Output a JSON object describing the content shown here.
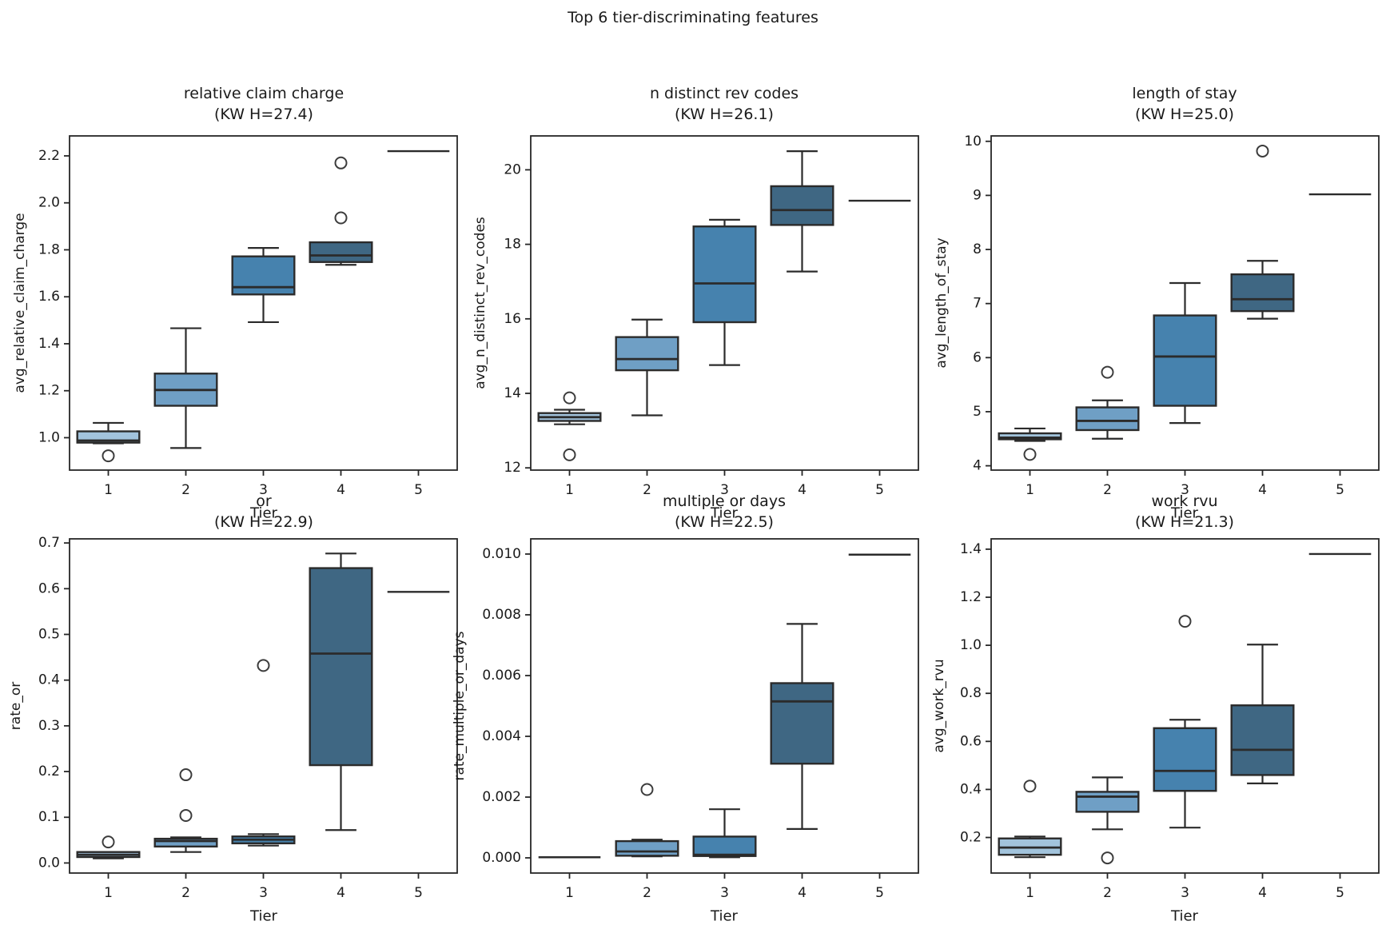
{
  "figure": {
    "suptitle": "Top 6 tier-discriminating features"
  },
  "palette": {
    "box_colors": [
      "#a2c3dc",
      "#6f9fc5",
      "#4682ae",
      "#3f6783",
      "#2e4f68"
    ],
    "line": "#2b2b2b",
    "spine": "#262626",
    "text": "#1a1a1a",
    "flier_edge": "#3c3c3c",
    "background": "#ffffff"
  },
  "chart_data": [
    {
      "type": "boxplot",
      "title": "relative claim charge",
      "subtitle": "(KW H=27.4)",
      "kw_h": 27.4,
      "xlabel": "Tier",
      "ylabel": "avg_relative_claim_charge",
      "categories": [
        "1",
        "2",
        "3",
        "4",
        "5"
      ],
      "ylim": [
        0.862,
        2.285
      ],
      "yticks": [
        1.0,
        1.2,
        1.4,
        1.6,
        1.8,
        2.0,
        2.2
      ],
      "ytick_labels": [
        "1.0",
        "1.2",
        "1.4",
        "1.6",
        "1.8",
        "2.0",
        "2.2"
      ],
      "boxes": [
        {
          "tier": "1",
          "whislo": 0.976,
          "q1": 0.979,
          "med": 0.988,
          "q3": 1.027,
          "whishi": 1.063,
          "fliers": [
            0.923
          ]
        },
        {
          "tier": "2",
          "whislo": 0.956,
          "q1": 1.136,
          "med": 1.203,
          "q3": 1.273,
          "whishi": 1.466,
          "fliers": []
        },
        {
          "tier": "3",
          "whislo": 1.492,
          "q1": 1.61,
          "med": 1.641,
          "q3": 1.772,
          "whishi": 1.808,
          "fliers": []
        },
        {
          "tier": "4",
          "whislo": 1.736,
          "q1": 1.748,
          "med": 1.776,
          "q3": 1.832,
          "whishi": 1.832,
          "fliers": [
            1.936,
            2.17
          ]
        },
        {
          "tier": "5",
          "whislo": 2.22,
          "q1": 2.22,
          "med": 2.22,
          "q3": 2.22,
          "whishi": 2.22,
          "fliers": []
        }
      ]
    },
    {
      "type": "boxplot",
      "title": "n distinct rev codes",
      "subtitle": "(KW H=26.1)",
      "kw_h": 26.1,
      "xlabel": "Tier",
      "ylabel": "avg_n_distinct_rev_codes",
      "categories": [
        "1",
        "2",
        "3",
        "4",
        "5"
      ],
      "ylim": [
        11.94,
        20.91
      ],
      "yticks": [
        12,
        14,
        16,
        18,
        20
      ],
      "ytick_labels": [
        "12",
        "14",
        "16",
        "18",
        "20"
      ],
      "boxes": [
        {
          "tier": "1",
          "whislo": 13.17,
          "q1": 13.26,
          "med": 13.36,
          "q3": 13.47,
          "whishi": 13.56,
          "fliers": [
            13.88,
            12.35
          ]
        },
        {
          "tier": "2",
          "whislo": 13.41,
          "q1": 14.62,
          "med": 14.92,
          "q3": 15.51,
          "whishi": 15.98,
          "fliers": []
        },
        {
          "tier": "3",
          "whislo": 14.76,
          "q1": 15.91,
          "med": 16.95,
          "q3": 18.48,
          "whishi": 18.66,
          "fliers": []
        },
        {
          "tier": "4",
          "whislo": 17.27,
          "q1": 18.52,
          "med": 18.92,
          "q3": 19.56,
          "whishi": 20.5,
          "fliers": []
        },
        {
          "tier": "5",
          "whislo": 19.17,
          "q1": 19.17,
          "med": 19.17,
          "q3": 19.17,
          "whishi": 19.17,
          "fliers": []
        }
      ]
    },
    {
      "type": "boxplot",
      "title": "length of stay",
      "subtitle": "(KW H=25.0)",
      "kw_h": 25.0,
      "xlabel": "Tier",
      "ylabel": "avg_length_of_stay",
      "categories": [
        "1",
        "2",
        "3",
        "4",
        "5"
      ],
      "ylim": [
        3.92,
        10.1
      ],
      "yticks": [
        4,
        5,
        6,
        7,
        8,
        9,
        10
      ],
      "ytick_labels": [
        "4",
        "5",
        "6",
        "7",
        "8",
        "9",
        "10"
      ],
      "boxes": [
        {
          "tier": "1",
          "whislo": 4.46,
          "q1": 4.49,
          "med": 4.52,
          "q3": 4.6,
          "whishi": 4.69,
          "fliers": [
            4.21
          ]
        },
        {
          "tier": "2",
          "whislo": 4.5,
          "q1": 4.66,
          "med": 4.83,
          "q3": 5.08,
          "whishi": 5.21,
          "fliers": [
            5.73
          ]
        },
        {
          "tier": "3",
          "whislo": 4.79,
          "q1": 5.11,
          "med": 6.02,
          "q3": 6.78,
          "whishi": 7.38,
          "fliers": []
        },
        {
          "tier": "4",
          "whislo": 6.72,
          "q1": 6.86,
          "med": 7.08,
          "q3": 7.54,
          "whishi": 7.79,
          "fliers": [
            9.82
          ]
        },
        {
          "tier": "5",
          "whislo": 9.02,
          "q1": 9.02,
          "med": 9.02,
          "q3": 9.02,
          "whishi": 9.02,
          "fliers": []
        }
      ]
    },
    {
      "type": "boxplot",
      "title": "or",
      "subtitle": "(KW H=22.9)",
      "kw_h": 22.9,
      "xlabel": "Tier",
      "ylabel": "rate_or",
      "categories": [
        "1",
        "2",
        "3",
        "4",
        "5"
      ],
      "ylim": [
        -0.022,
        0.709
      ],
      "yticks": [
        0.0,
        0.1,
        0.2,
        0.3,
        0.4,
        0.5,
        0.6,
        0.7
      ],
      "ytick_labels": [
        "0.0",
        "0.1",
        "0.2",
        "0.3",
        "0.4",
        "0.5",
        "0.6",
        "0.7"
      ],
      "boxes": [
        {
          "tier": "1",
          "whislo": 0.01,
          "q1": 0.013,
          "med": 0.018,
          "q3": 0.024,
          "whishi": 0.024,
          "fliers": [
            0.046
          ]
        },
        {
          "tier": "2",
          "whislo": 0.024,
          "q1": 0.036,
          "med": 0.048,
          "q3": 0.053,
          "whishi": 0.056,
          "fliers": [
            0.104,
            0.193
          ]
        },
        {
          "tier": "3",
          "whislo": 0.038,
          "q1": 0.043,
          "med": 0.051,
          "q3": 0.058,
          "whishi": 0.063,
          "fliers": [
            0.432
          ]
        },
        {
          "tier": "4",
          "whislo": 0.072,
          "q1": 0.214,
          "med": 0.458,
          "q3": 0.645,
          "whishi": 0.677,
          "fliers": []
        },
        {
          "tier": "5",
          "whislo": 0.593,
          "q1": 0.593,
          "med": 0.593,
          "q3": 0.593,
          "whishi": 0.593,
          "fliers": []
        }
      ]
    },
    {
      "type": "boxplot",
      "title": "multiple or days",
      "subtitle": "(KW H=22.5)",
      "kw_h": 22.5,
      "xlabel": "Tier",
      "ylabel": "rate_multiple_or_days",
      "categories": [
        "1",
        "2",
        "3",
        "4",
        "5"
      ],
      "ylim": [
        -0.0005,
        0.0105
      ],
      "yticks": [
        0.0,
        0.002,
        0.004,
        0.006,
        0.008,
        0.01
      ],
      "ytick_labels": [
        "0.000",
        "0.002",
        "0.004",
        "0.006",
        "0.008",
        "0.010"
      ],
      "boxes": [
        {
          "tier": "1",
          "whislo": 0.0,
          "q1": 0.0,
          "med": 2e-05,
          "q3": 4e-05,
          "whishi": 5e-05,
          "fliers": []
        },
        {
          "tier": "2",
          "whislo": 5e-05,
          "q1": 7e-05,
          "med": 0.00021,
          "q3": 0.00055,
          "whishi": 0.0006,
          "fliers": [
            0.00225
          ]
        },
        {
          "tier": "3",
          "whislo": 2e-05,
          "q1": 6e-05,
          "med": 0.0001,
          "q3": 0.0007,
          "whishi": 0.0016,
          "fliers": []
        },
        {
          "tier": "4",
          "whislo": 0.00095,
          "q1": 0.0031,
          "med": 0.00515,
          "q3": 0.00575,
          "whishi": 0.0077,
          "fliers": []
        },
        {
          "tier": "5",
          "whislo": 0.00998,
          "q1": 0.00998,
          "med": 0.00998,
          "q3": 0.00998,
          "whishi": 0.00998,
          "fliers": []
        }
      ]
    },
    {
      "type": "boxplot",
      "title": "work rvu",
      "subtitle": "(KW H=21.3)",
      "kw_h": 21.3,
      "xlabel": "Tier",
      "ylabel": "avg_work_rvu",
      "categories": [
        "1",
        "2",
        "3",
        "4",
        "5"
      ],
      "ylim": [
        0.052,
        1.443
      ],
      "yticks": [
        0.2,
        0.4,
        0.6,
        0.8,
        1.0,
        1.2,
        1.4
      ],
      "ytick_labels": [
        "0.2",
        "0.4",
        "0.6",
        "0.8",
        "1.0",
        "1.2",
        "1.4"
      ],
      "boxes": [
        {
          "tier": "1",
          "whislo": 0.118,
          "q1": 0.128,
          "med": 0.158,
          "q3": 0.196,
          "whishi": 0.204,
          "fliers": [
            0.414
          ]
        },
        {
          "tier": "2",
          "whislo": 0.234,
          "q1": 0.307,
          "med": 0.37,
          "q3": 0.39,
          "whishi": 0.45,
          "fliers": [
            0.115
          ]
        },
        {
          "tier": "3",
          "whislo": 0.241,
          "q1": 0.394,
          "med": 0.477,
          "q3": 0.655,
          "whishi": 0.69,
          "fliers": [
            1.1
          ]
        },
        {
          "tier": "4",
          "whislo": 0.425,
          "q1": 0.46,
          "med": 0.565,
          "q3": 0.75,
          "whishi": 1.003,
          "fliers": []
        },
        {
          "tier": "5",
          "whislo": 1.38,
          "q1": 1.38,
          "med": 1.38,
          "q3": 1.38,
          "whishi": 1.38,
          "fliers": []
        }
      ]
    }
  ]
}
